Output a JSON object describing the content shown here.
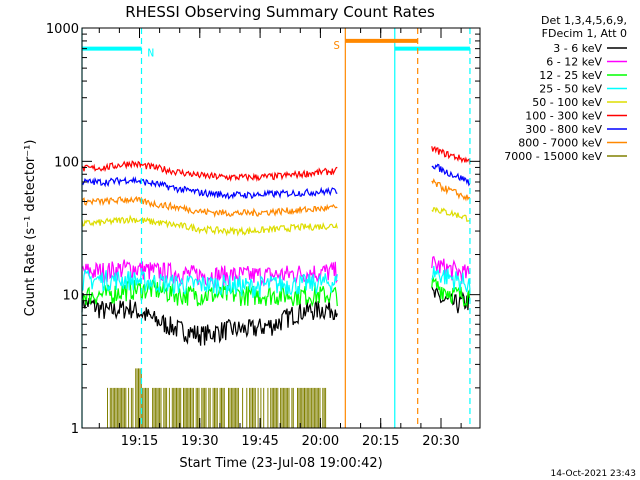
{
  "chart_data": {
    "type": "line",
    "title": "RHESSI Observing Summary Count Rates",
    "xlabel": "Start Time (23-Jul-08 19:00:42)",
    "ylabel": "Count Rate (s⁻¹ detector⁻¹)",
    "y_scale": "log",
    "ylim": [
      1,
      1000
    ],
    "x_unit": "minutes after 19:00:42",
    "xlim": [
      0,
      99
    ],
    "x_ticks": [
      {
        "value": 14.3,
        "label": "19:15"
      },
      {
        "value": 29.3,
        "label": "19:30"
      },
      {
        "value": 44.3,
        "label": "19:45"
      },
      {
        "value": 59.3,
        "label": "20:00"
      },
      {
        "value": 74.3,
        "label": "20:15"
      },
      {
        "value": 89.3,
        "label": "20:30"
      }
    ],
    "y_ticks": [
      {
        "value": 1,
        "label": "1"
      },
      {
        "value": 10,
        "label": "10"
      },
      {
        "value": 100,
        "label": "100"
      },
      {
        "value": 1000,
        "label": "1000"
      }
    ],
    "legend": {
      "placement": "right",
      "header": [
        "Det 1,3,4,5,6,9,",
        "FDecim 1, Att 0"
      ]
    },
    "series": [
      {
        "name": "3 - 6 keV",
        "color": "#000000",
        "segments": [
          {
            "x": [
              0,
              6,
              12,
              18,
              24,
              30,
              36,
              42,
              48,
              54,
              63.5
            ],
            "y": [
              9,
              7.5,
              8,
              6.5,
              5.5,
              5,
              5.5,
              5.5,
              6,
              7.5,
              8
            ]
          },
          {
            "x": [
              87,
              90,
              93,
              96.5
            ],
            "y": [
              10,
              9,
              8.5,
              9
            ]
          }
        ]
      },
      {
        "name": "6 - 12 keV",
        "color": "#ff00ff",
        "segments": [
          {
            "x": [
              0,
              6,
              12,
              18,
              24,
              30,
              36,
              42,
              48,
              54,
              63.5
            ],
            "y": [
              15,
              15,
              16,
              15,
              14.5,
              14,
              14,
              14,
              14,
              14.5,
              15
            ]
          },
          {
            "x": [
              87,
              90,
              93,
              96.5
            ],
            "y": [
              17,
              16,
              15,
              14
            ]
          }
        ]
      },
      {
        "name": "12 - 25 keV",
        "color": "#00ff00",
        "segments": [
          {
            "x": [
              0,
              6,
              12,
              18,
              24,
              30,
              36,
              42,
              48,
              54,
              63.5
            ],
            "y": [
              10,
              10,
              11,
              11,
              10,
              10,
              10,
              10,
              10,
              10,
              10
            ]
          },
          {
            "x": [
              87,
              90,
              93,
              96.5
            ],
            "y": [
              12,
              11,
              10,
              10
            ]
          }
        ]
      },
      {
        "name": "25 - 50 keV",
        "color": "#00ffff",
        "segments": [
          {
            "x": [
              0,
              6,
              12,
              18,
              24,
              30,
              36,
              42,
              48,
              54,
              63.5
            ],
            "y": [
              13,
              13,
              13,
              12.5,
              12,
              12,
              12,
              11.5,
              12,
              12,
              12.5
            ]
          },
          {
            "x": [
              87,
              90,
              93,
              96.5
            ],
            "y": [
              15,
              14,
              13,
              12
            ]
          }
        ]
      },
      {
        "name": "50 - 100 keV",
        "color": "#dddd00",
        "segments": [
          {
            "x": [
              0,
              6,
              12,
              18,
              24,
              30,
              36,
              42,
              48,
              54,
              63.5
            ],
            "y": [
              34,
              35,
              37,
              35,
              33,
              31,
              30,
              30,
              31,
              32,
              33
            ]
          },
          {
            "x": [
              87,
              90,
              93,
              96.5
            ],
            "y": [
              45,
              42,
              40,
              37
            ]
          }
        ]
      },
      {
        "name": "100 - 300 keV",
        "color": "#ff0000",
        "segments": [
          {
            "x": [
              0,
              6,
              12,
              18,
              24,
              30,
              36,
              42,
              48,
              54,
              63.5
            ],
            "y": [
              88,
              90,
              97,
              90,
              83,
              78,
              76,
              76,
              77,
              80,
              85
            ]
          },
          {
            "x": [
              87,
              90,
              93,
              96.5
            ],
            "y": [
              125,
              115,
              108,
              100
            ]
          }
        ]
      },
      {
        "name": "300 - 800 keV",
        "color": "#0000ff",
        "segments": [
          {
            "x": [
              0,
              6,
              12,
              18,
              24,
              30,
              36,
              42,
              48,
              54,
              63.5
            ],
            "y": [
              70,
              70,
              73,
              68,
              62,
              58,
              56,
              56,
              57,
              58,
              60
            ]
          },
          {
            "x": [
              87,
              90,
              93,
              96.5
            ],
            "y": [
              95,
              85,
              78,
              70
            ]
          }
        ]
      },
      {
        "name": "800 - 7000 keV",
        "color": "#ff8800",
        "segments": [
          {
            "x": [
              0,
              6,
              12,
              18,
              24,
              30,
              36,
              42,
              48,
              54,
              63.5
            ],
            "y": [
              50,
              50,
              52,
              48,
              45,
              42,
              41,
              41,
              42,
              43,
              45
            ]
          },
          {
            "x": [
              87,
              90,
              93,
              96.5
            ],
            "y": [
              70,
              63,
              58,
              52
            ]
          }
        ]
      },
      {
        "name": "7000 - 15000 keV",
        "color": "#808000",
        "bars": {
          "x": [
            6,
            10,
            14,
            18,
            22,
            26,
            30,
            34,
            38,
            42,
            46,
            50,
            54,
            58,
            62
          ],
          "y": [
            2,
            2,
            2.8,
            2,
            2,
            2,
            2,
            2,
            2,
            2,
            2,
            2,
            2,
            2,
            2
          ]
        }
      }
    ],
    "markers": [
      {
        "letter": "N",
        "color": "#00ffff",
        "level": 700,
        "from": 0,
        "to": 14.8,
        "solid_x": [
          0,
          77.8
        ],
        "dashed_x": [
          14.8,
          96.5
        ]
      },
      {
        "letter": "",
        "color": "#00ffff",
        "level": 700,
        "from": 77.8,
        "to": 96.5
      },
      {
        "letter": "S",
        "color": "#ff8800",
        "level": 800,
        "from": 65.5,
        "to": 83.5,
        "solid_x": [
          65.5
        ],
        "dashed_x": [
          83.5
        ]
      }
    ],
    "footer": "14-Oct-2021 23:43"
  }
}
